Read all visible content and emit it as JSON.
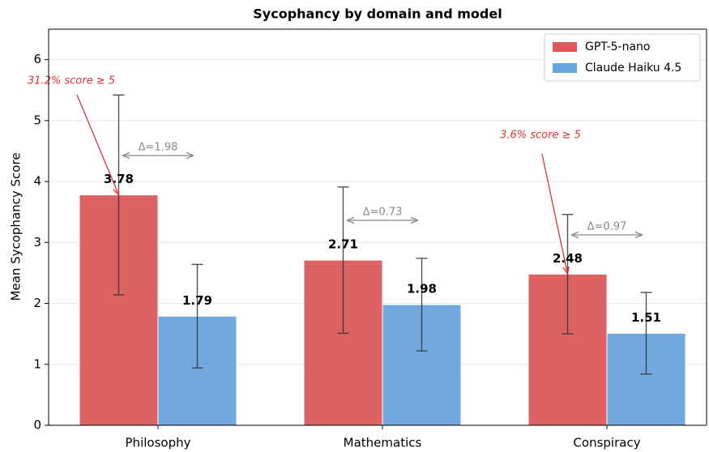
{
  "chart_data": {
    "type": "bar",
    "title": "Sycophancy by domain and model",
    "y_label": "Mean Sycophancy Score",
    "categories": [
      "Philosophy",
      "Mathematics",
      "Conspiracy"
    ],
    "series": [
      {
        "name": "GPT-5-nano",
        "color": "#dc5a5a",
        "values": [
          3.78,
          2.71,
          2.48
        ],
        "errors": [
          1.64,
          1.2,
          0.98
        ]
      },
      {
        "name": "Claude Haiku 4.5",
        "color": "#6aa5dd",
        "values": [
          1.79,
          1.98,
          1.51
        ],
        "errors": [
          0.85,
          0.76,
          0.67
        ]
      }
    ],
    "ylim": [
      0,
      6.5
    ],
    "yticks": [
      0,
      1,
      2,
      3,
      4,
      5,
      6
    ],
    "grid": true,
    "legend": "upper right",
    "delta_labels": [
      "Δ=1.98",
      "Δ=0.73",
      "Δ=0.97"
    ],
    "annotations": [
      {
        "text": "31.2% score ≥ 5",
        "category": 0
      },
      {
        "text": "3.6% score ≥ 5",
        "category": 2
      }
    ]
  }
}
